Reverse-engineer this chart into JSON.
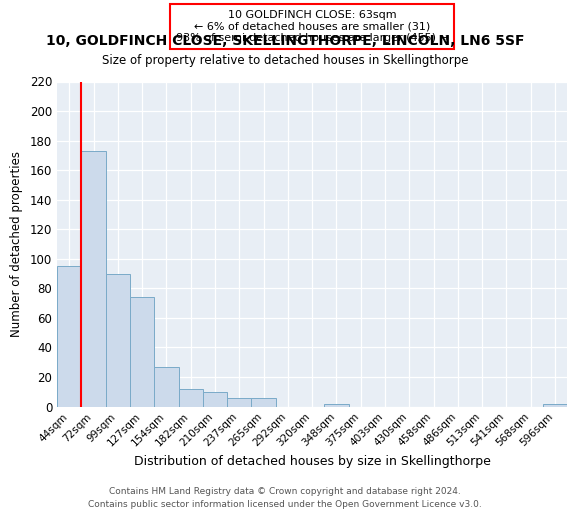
{
  "title1": "10, GOLDFINCH CLOSE, SKELLINGTHORPE, LINCOLN, LN6 5SF",
  "title2": "Size of property relative to detached houses in Skellingthorpe",
  "xlabel": "Distribution of detached houses by size in Skellingthorpe",
  "ylabel": "Number of detached properties",
  "bar_labels": [
    "44sqm",
    "72sqm",
    "99sqm",
    "127sqm",
    "154sqm",
    "182sqm",
    "210sqm",
    "237sqm",
    "265sqm",
    "292sqm",
    "320sqm",
    "348sqm",
    "375sqm",
    "403sqm",
    "430sqm",
    "458sqm",
    "486sqm",
    "513sqm",
    "541sqm",
    "568sqm",
    "596sqm"
  ],
  "bar_values": [
    95,
    173,
    90,
    74,
    27,
    12,
    10,
    6,
    6,
    0,
    0,
    2,
    0,
    0,
    0,
    0,
    0,
    0,
    0,
    0,
    2
  ],
  "bar_color": "#ccdaeb",
  "bar_edge_color": "#7aaac8",
  "red_line_index": 1,
  "ylim": [
    0,
    220
  ],
  "yticks": [
    0,
    20,
    40,
    60,
    80,
    100,
    120,
    140,
    160,
    180,
    200,
    220
  ],
  "annotation_title": "10 GOLDFINCH CLOSE: 63sqm",
  "annotation_line1": "← 6% of detached houses are smaller (31)",
  "annotation_line2": "93% of semi-detached houses are larger (455) →",
  "footer1": "Contains HM Land Registry data © Crown copyright and database right 2024.",
  "footer2": "Contains public sector information licensed under the Open Government Licence v3.0.",
  "bg_color": "#ffffff",
  "plot_bg_color": "#e8eef5"
}
